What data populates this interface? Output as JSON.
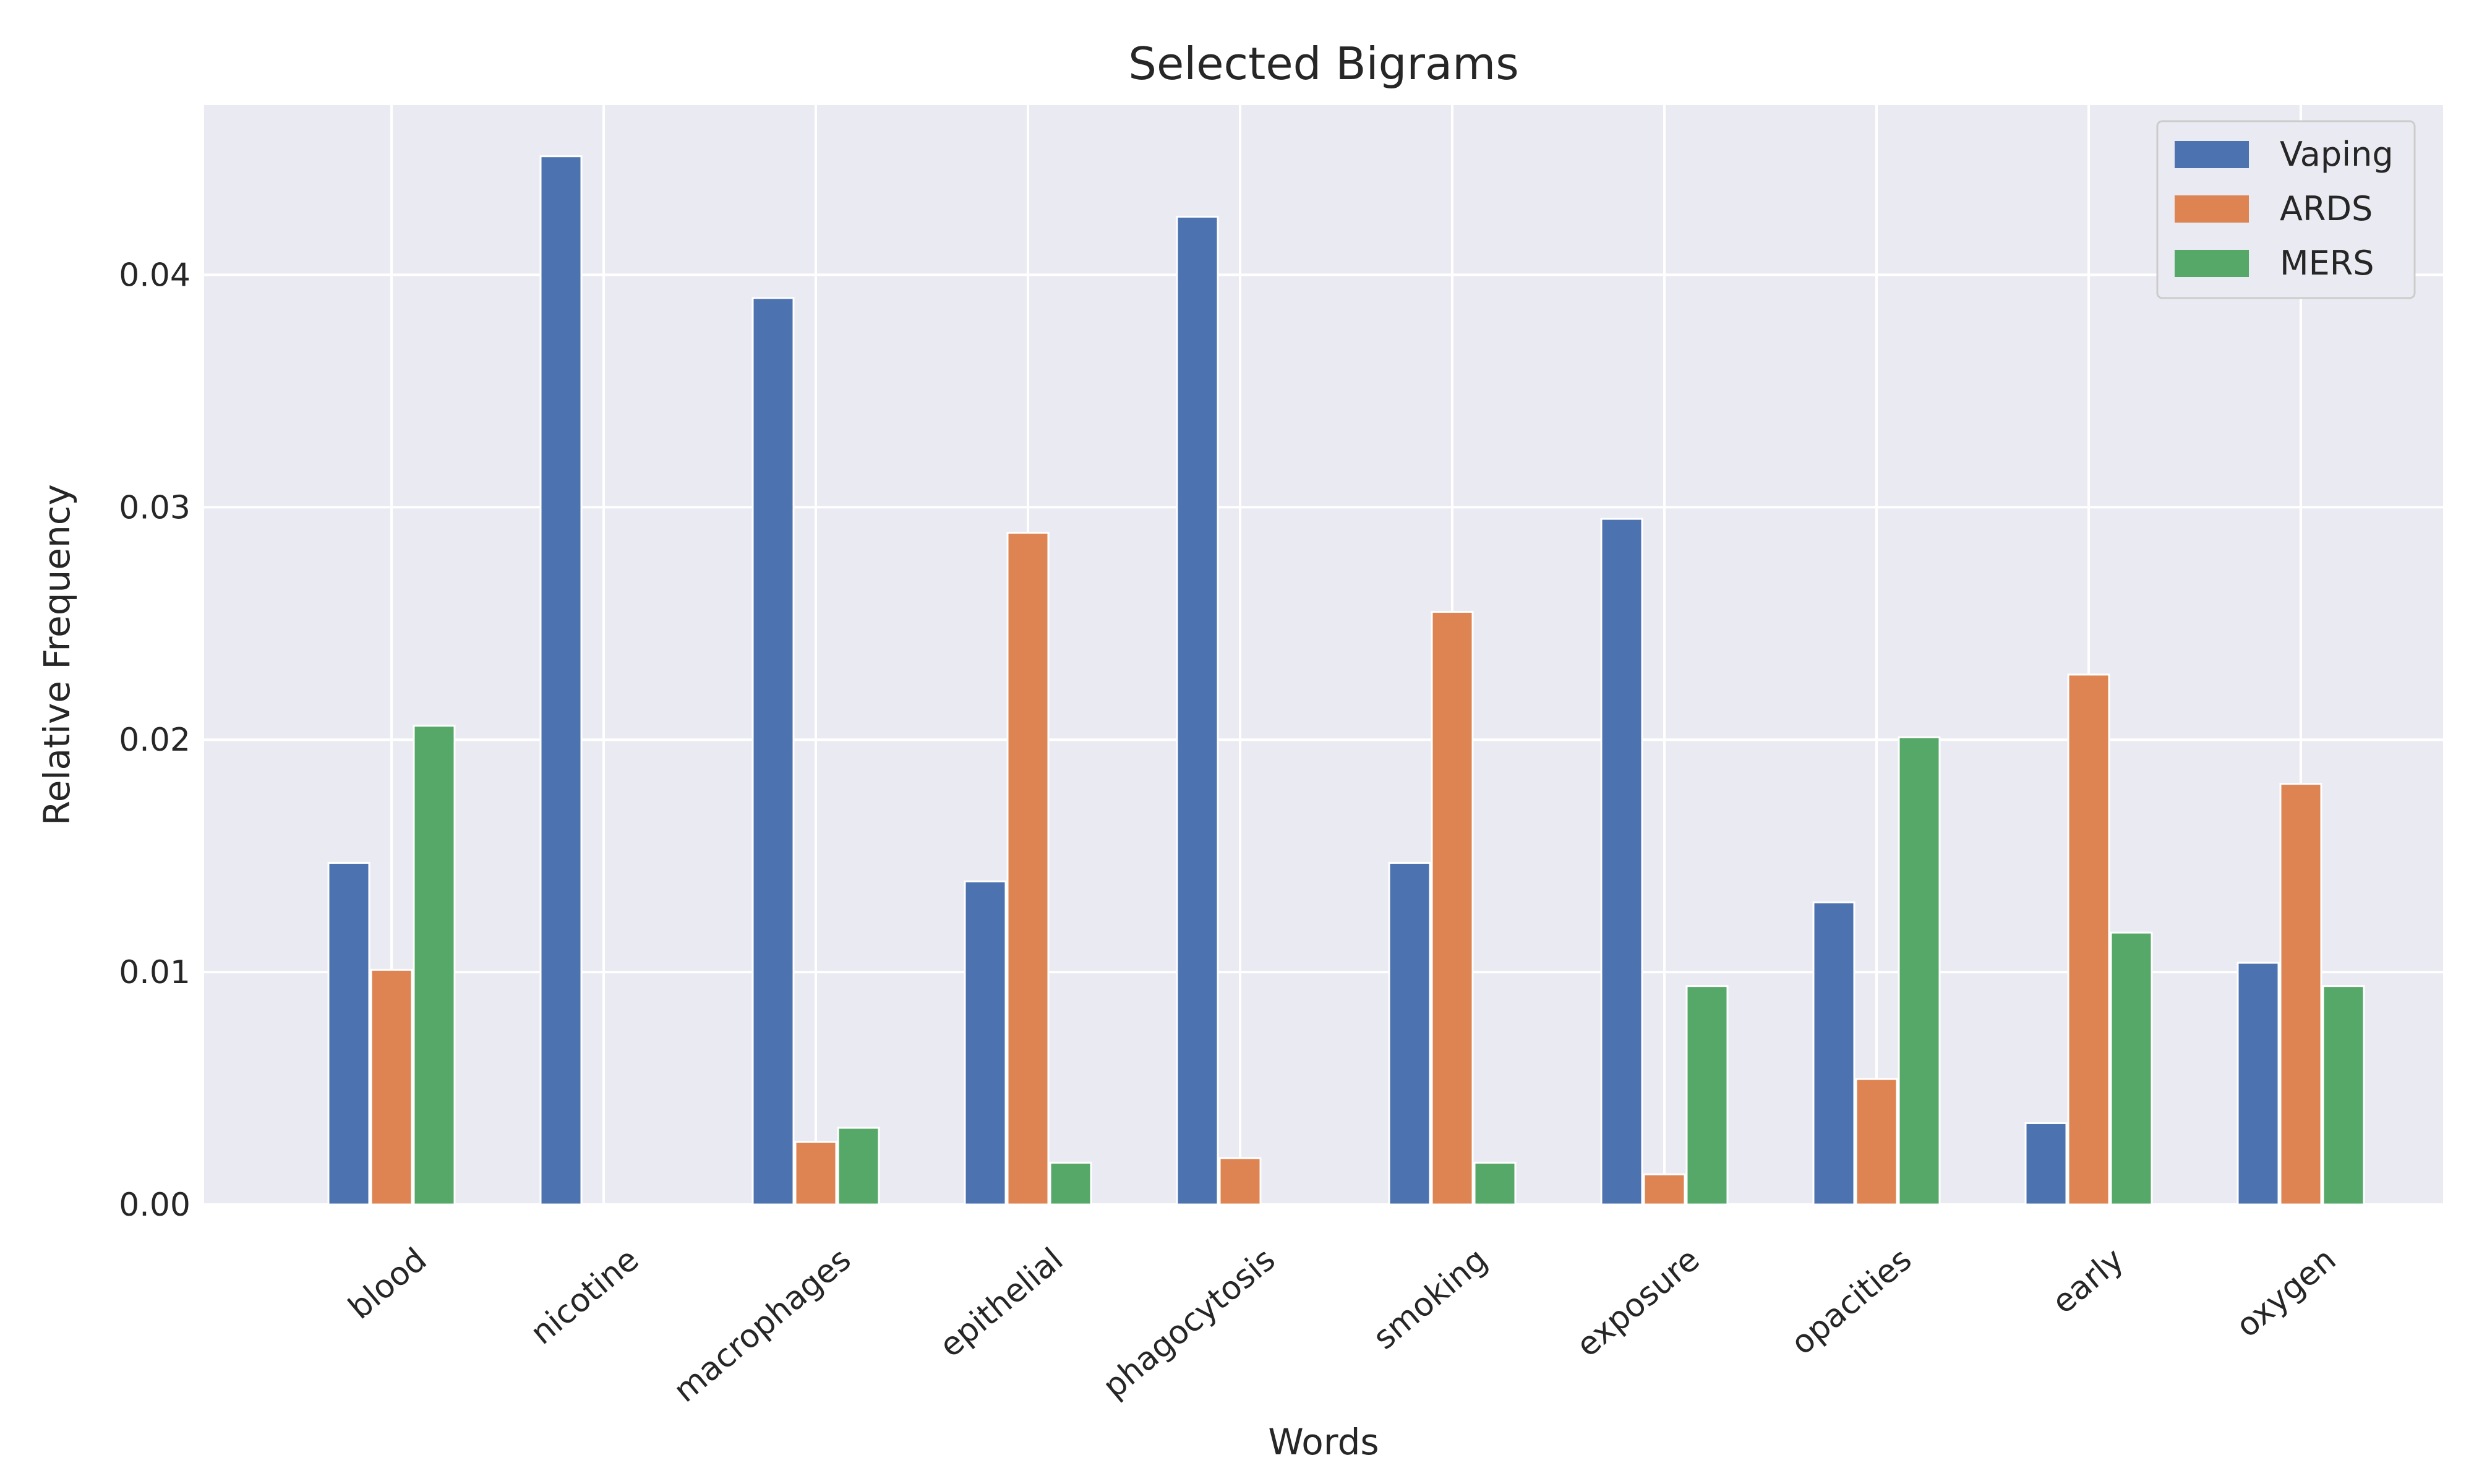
{
  "chart_data": {
    "type": "bar",
    "title": "Selected Bigrams",
    "xlabel": "Words",
    "ylabel": "Relative Frequency",
    "categories": [
      "blood",
      "nicotine",
      "macrophages",
      "epithelial",
      "phagocytosis",
      "smoking",
      "exposure",
      "opacities",
      "early",
      "oxygen"
    ],
    "series": [
      {
        "name": "Vaping",
        "color": "#4c72b0",
        "values": [
          0.0147,
          0.0451,
          0.039,
          0.0139,
          0.0425,
          0.0147,
          0.0295,
          0.013,
          0.0035,
          0.0104
        ]
      },
      {
        "name": "ARDS",
        "color": "#dd8452",
        "values": [
          0.0101,
          0.0,
          0.0027,
          0.0289,
          0.002,
          0.0255,
          0.0013,
          0.0054,
          0.0228,
          0.0181
        ]
      },
      {
        "name": "MERS",
        "color": "#55a868",
        "values": [
          0.0206,
          0.0,
          0.0033,
          0.0018,
          0.0,
          0.0018,
          0.0094,
          0.0201,
          0.0117,
          0.0094
        ]
      }
    ],
    "ylim": [
      0,
      0.0473
    ],
    "yticks": [
      "0.00",
      "0.01",
      "0.02",
      "0.03",
      "0.04"
    ],
    "ytick_values": [
      0,
      0.01,
      0.02,
      0.03,
      0.04
    ],
    "grid": true,
    "legend_position": "top-right",
    "background_color": "#eaeaf2",
    "grid_color": "#ffffff"
  }
}
